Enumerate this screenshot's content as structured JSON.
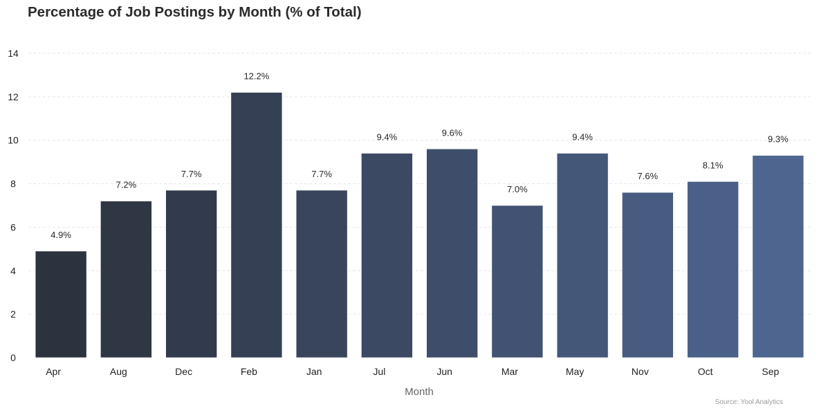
{
  "chart_data": {
    "type": "bar",
    "title": "Percentage of Job Postings by Month (% of Total)",
    "xlabel": "Month",
    "ylabel": "",
    "categories": [
      "Apr",
      "Aug",
      "Dec",
      "Feb",
      "Jan",
      "Jul",
      "Jun",
      "Mar",
      "May",
      "Nov",
      "Oct",
      "Sep"
    ],
    "values": [
      4.9,
      7.2,
      7.7,
      12.2,
      7.7,
      9.4,
      9.6,
      7.0,
      9.4,
      7.6,
      8.1,
      9.3
    ],
    "data_labels": [
      "4.9%",
      "7.2%",
      "7.7%",
      "12.2%",
      "7.7%",
      "9.4%",
      "9.6%",
      "7.0%",
      "9.4%",
      "7.6%",
      "8.1%",
      "9.3%"
    ],
    "ylim": [
      0,
      14
    ],
    "yticks": [
      0,
      2,
      4,
      6,
      8,
      10,
      12,
      14
    ],
    "grid": "horizontal dashed",
    "legend": "none",
    "colors": {
      "gradient_start": "#2c323e",
      "gradient_end": "#4d658f",
      "grid": "#e6e6e6"
    }
  },
  "source": "Source: Yool Analytics"
}
